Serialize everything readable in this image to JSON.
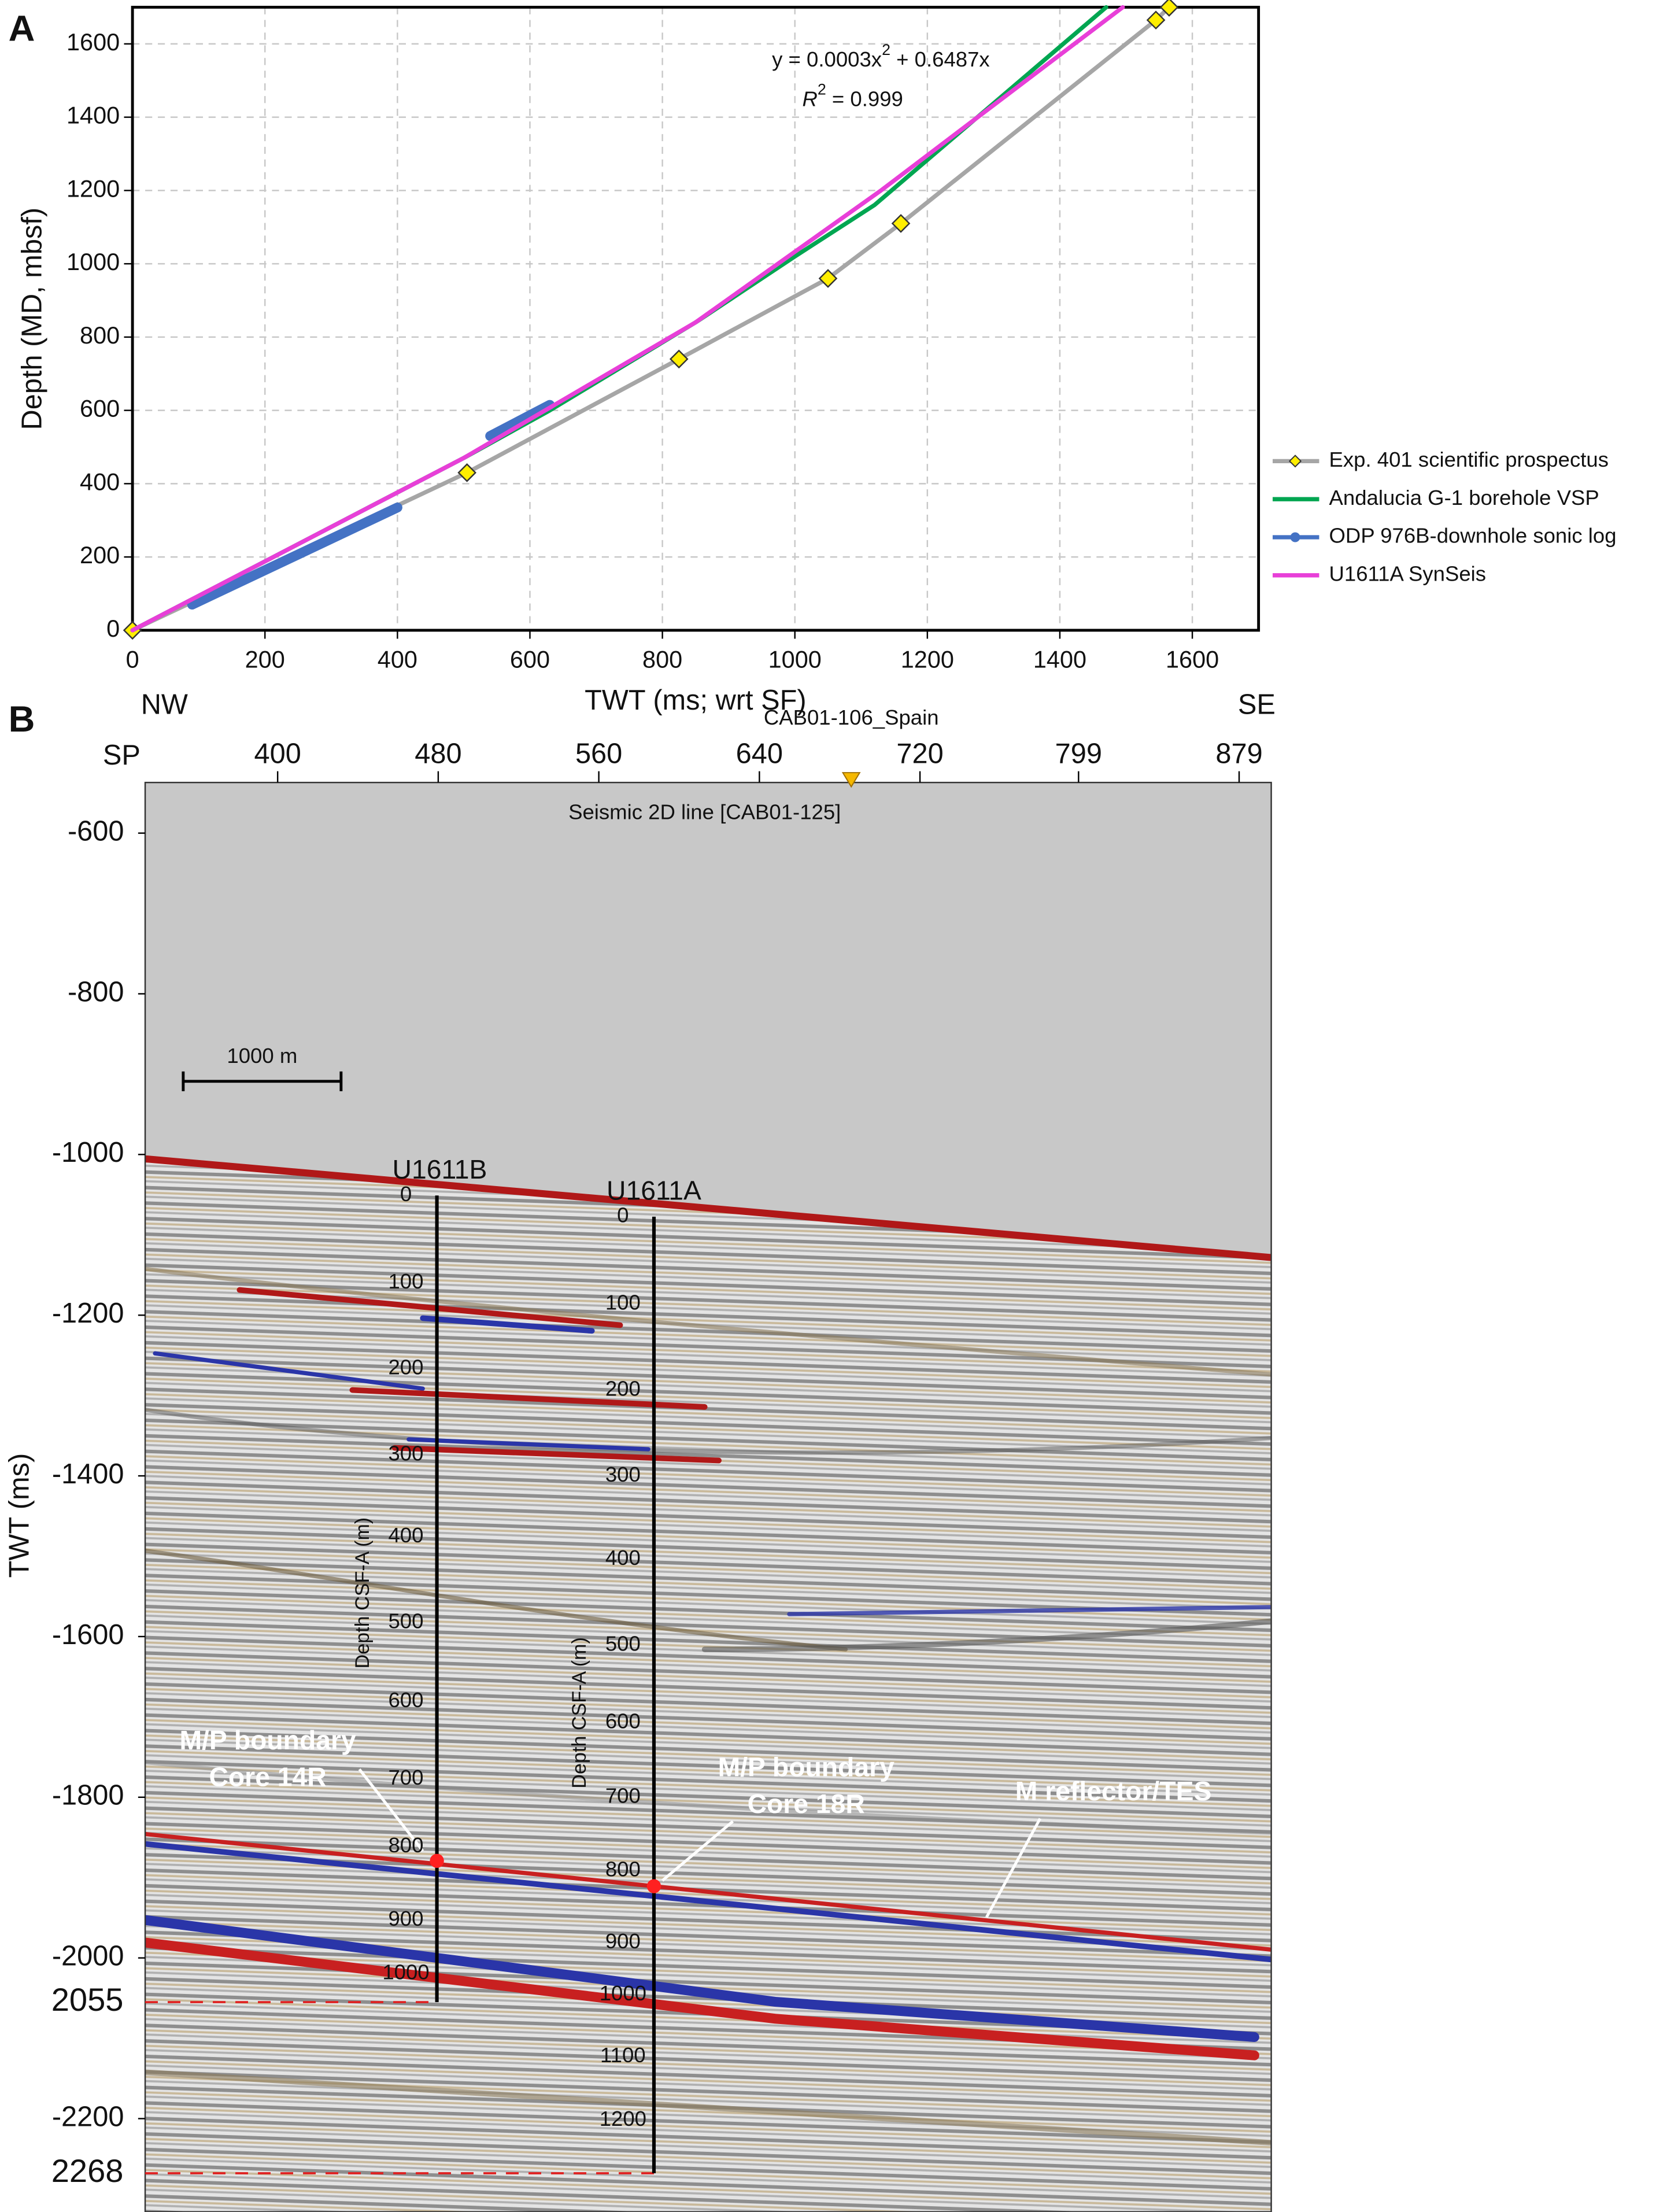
{
  "chart_data": [
    {
      "type": "line",
      "panel": "A",
      "xlabel": "TWT (ms; wrt SF)",
      "ylabel": "Depth (MD, mbsf)",
      "xlim": [
        0,
        1700
      ],
      "xticks": [
        0,
        200,
        400,
        600,
        800,
        1000,
        1200,
        1400,
        1600
      ],
      "ylim": [
        0,
        1700
      ],
      "yticks": [
        0,
        200,
        400,
        600,
        800,
        1000,
        1200,
        1400,
        1600
      ],
      "grid": true,
      "legend": "right",
      "equation": {
        "lead": "y = 0.0003x",
        "sup": "2",
        "tail": " + 0.6487x"
      },
      "r2": {
        "lead": "R",
        "sup": "2",
        "tail": " = 0.999"
      },
      "series": [
        {
          "name": "Exp. 401 scientific prospectus",
          "color": "#a6a6a6",
          "marker": "diamond",
          "marker_color": "#ffee00",
          "x": [
            0,
            505,
            825,
            1050,
            1160,
            1545,
            1565
          ],
          "values": [
            0,
            430,
            740,
            960,
            1110,
            1665,
            1700
          ]
        },
        {
          "name": "Andalucia G-1 borehole VSP",
          "color": "#00a651",
          "x": [
            0,
            500,
            630,
            850,
            1000,
            1120,
            1470
          ],
          "values": [
            0,
            470,
            600,
            840,
            1020,
            1160,
            1700
          ]
        },
        {
          "name": "ODP 976B-downhole sonic log",
          "color": "#4472c4",
          "width": 7,
          "x": [
            90,
            400,
            null,
            540,
            630
          ],
          "values": [
            70,
            335,
            null,
            530,
            615
          ]
        },
        {
          "name": "U1611A SynSeis",
          "color": "#e83fd8",
          "x": [
            0,
            500,
            850,
            1130,
            1495
          ],
          "values": [
            0,
            470,
            840,
            1200,
            1700
          ]
        }
      ]
    },
    {
      "type": "seismic",
      "panel": "B",
      "top_axis": "SP",
      "left_dir": "NW",
      "right_dir": "SE",
      "line_name": "CAB01-106_Spain",
      "image_title": "Seismic 2D line [CAB01-125]",
      "scale_bar": "1000 m",
      "xlim": [
        334,
        895
      ],
      "xticks": [
        400,
        480,
        560,
        640,
        720,
        799,
        879
      ],
      "ylabel": "TWT (ms)",
      "ylim": [
        -2316,
        -537
      ],
      "yticks": [
        -600,
        -800,
        -1000,
        -1200,
        -1400,
        -1600,
        -1800,
        -2000,
        -2200
      ],
      "horizons": [
        {
          "value": -2055,
          "label": "2055"
        },
        {
          "value": -2268,
          "label": "2268"
        }
      ],
      "wells": [
        {
          "name": "U1611B",
          "axis_label": "Depth CSF-A (m)",
          "depths": [
            0,
            100,
            200,
            300,
            400,
            500,
            600,
            700,
            800,
            900,
            1000
          ]
        },
        {
          "name": "U1611A",
          "axis_label": "Depth CSF-A (m)",
          "depths": [
            0,
            100,
            200,
            300,
            400,
            500,
            600,
            700,
            800,
            900,
            1000,
            1100,
            1200
          ]
        }
      ],
      "annotations": [
        [
          "M/P boundary",
          "Core 14R"
        ],
        [
          "M/P boundary",
          "Core 18R"
        ],
        [
          "M reflector/TES"
        ]
      ]
    }
  ]
}
